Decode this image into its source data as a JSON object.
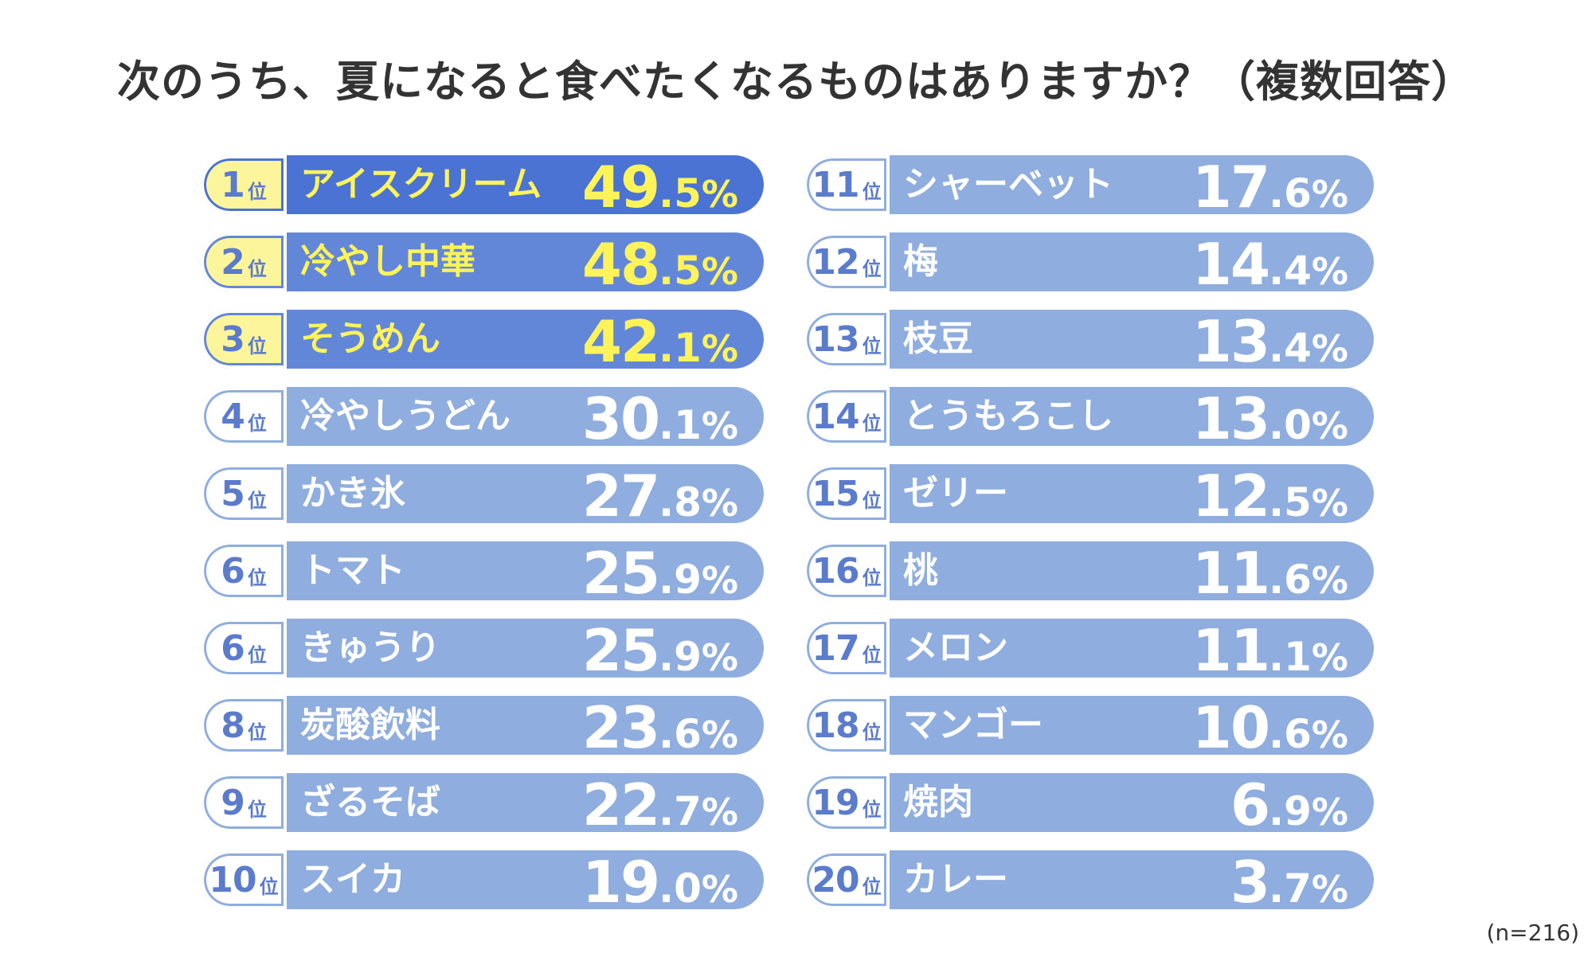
{
  "title": "次のうち、夏になると食べたくなるものはありますか？（複数回答）",
  "note": "(n=216)",
  "colors": {
    "bar_top1": "#4a73d4",
    "bar_top23": "#6387d8",
    "bar_rest": "#8fadde",
    "highlight_text": "#fff35a",
    "pill_top3": "#fdf59b",
    "pill_rest": "#ffffff",
    "pill_text": "#5b7bcc"
  },
  "rank_suffix": "位",
  "chart_data": {
    "type": "table",
    "title": "次のうち、夏になると食べたくなるものはありますか？（複数回答）",
    "unit": "%",
    "rows": [
      {
        "rank": "1",
        "item": "アイスクリーム",
        "int": "49",
        "dec": ".5",
        "pct": "%",
        "value": 49.5
      },
      {
        "rank": "2",
        "item": "冷やし中華",
        "int": "48",
        "dec": ".5",
        "pct": "%",
        "value": 48.5
      },
      {
        "rank": "3",
        "item": "そうめん",
        "int": "42",
        "dec": ".1",
        "pct": "%",
        "value": 42.1
      },
      {
        "rank": "4",
        "item": "冷やしうどん",
        "int": "30",
        "dec": ".1",
        "pct": "%",
        "value": 30.1
      },
      {
        "rank": "5",
        "item": "かき氷",
        "int": "27",
        "dec": ".8",
        "pct": "%",
        "value": 27.8
      },
      {
        "rank": "6",
        "item": "トマト",
        "int": "25",
        "dec": ".9",
        "pct": "%",
        "value": 25.9
      },
      {
        "rank": "6",
        "item": "きゅうり",
        "int": "25",
        "dec": ".9",
        "pct": "%",
        "value": 25.9
      },
      {
        "rank": "8",
        "item": "炭酸飲料",
        "int": "23",
        "dec": ".6",
        "pct": "%",
        "value": 23.6
      },
      {
        "rank": "9",
        "item": "ざるそば",
        "int": "22",
        "dec": ".7",
        "pct": "%",
        "value": 22.7
      },
      {
        "rank": "10",
        "item": "スイカ",
        "int": "19",
        "dec": ".0",
        "pct": "%",
        "value": 19.0
      },
      {
        "rank": "11",
        "item": "シャーベット",
        "int": "17",
        "dec": ".6",
        "pct": "%",
        "value": 17.6
      },
      {
        "rank": "12",
        "item": "梅",
        "int": "14",
        "dec": ".4",
        "pct": "%",
        "value": 14.4
      },
      {
        "rank": "13",
        "item": "枝豆",
        "int": "13",
        "dec": ".4",
        "pct": "%",
        "value": 13.4
      },
      {
        "rank": "14",
        "item": "とうもろこし",
        "int": "13",
        "dec": ".0",
        "pct": "%",
        "value": 13.0
      },
      {
        "rank": "15",
        "item": "ゼリー",
        "int": "12",
        "dec": ".5",
        "pct": "%",
        "value": 12.5
      },
      {
        "rank": "16",
        "item": "桃",
        "int": "11",
        "dec": ".6",
        "pct": "%",
        "value": 11.6
      },
      {
        "rank": "17",
        "item": "メロン",
        "int": "11",
        "dec": ".1",
        "pct": "%",
        "value": 11.1
      },
      {
        "rank": "18",
        "item": "マンゴー",
        "int": "10",
        "dec": ".6",
        "pct": "%",
        "value": 10.6
      },
      {
        "rank": "19",
        "item": "焼肉",
        "int": "6",
        "dec": ".9",
        "pct": "%",
        "value": 6.9
      },
      {
        "rank": "20",
        "item": "カレー",
        "int": "3",
        "dec": ".7",
        "pct": "%",
        "value": 3.7
      }
    ]
  }
}
